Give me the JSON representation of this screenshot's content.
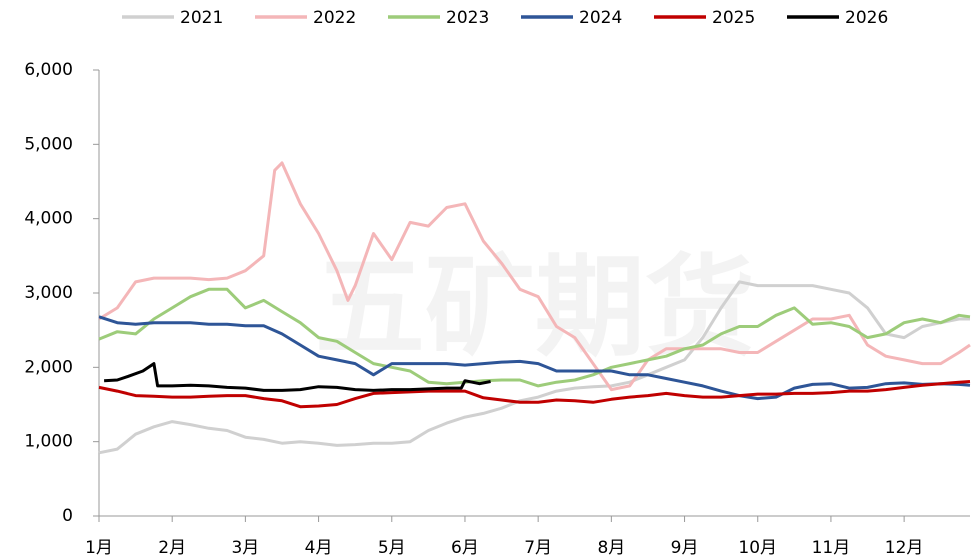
{
  "chart_data": {
    "type": "line",
    "watermark": "五矿期货",
    "xlim": [
      1,
      12.9
    ],
    "xticks": [
      {
        "value": 1,
        "label": "1月"
      },
      {
        "value": 2,
        "label": "2月"
      },
      {
        "value": 3,
        "label": "3月"
      },
      {
        "value": 4,
        "label": "4月"
      },
      {
        "value": 5,
        "label": "5月"
      },
      {
        "value": 6,
        "label": "6月"
      },
      {
        "value": 7,
        "label": "7月"
      },
      {
        "value": 8,
        "label": "8月"
      },
      {
        "value": 9,
        "label": "9月"
      },
      {
        "value": 10,
        "label": "10月"
      },
      {
        "value": 11,
        "label": "11月"
      },
      {
        "value": 12,
        "label": "12月"
      }
    ],
    "ylim": [
      0,
      6000
    ],
    "yticks": [
      0,
      {
        "value": 1000,
        "label": "1,000"
      },
      {
        "value": 2000,
        "label": "2,000"
      },
      {
        "value": 3000,
        "label": "3,000"
      },
      {
        "value": 4000,
        "label": "4,000"
      },
      {
        "value": 5000,
        "label": "5,000"
      },
      {
        "value": 6000,
        "label": "6,000"
      }
    ],
    "legend": "top",
    "series": [
      {
        "name": "2021",
        "color": "#d0d0d0",
        "x": [
          1,
          1.25,
          1.5,
          1.75,
          2,
          2.25,
          2.5,
          2.75,
          3,
          3.25,
          3.5,
          3.75,
          4,
          4.25,
          4.5,
          4.75,
          5,
          5.25,
          5.5,
          5.75,
          6,
          6.25,
          6.5,
          6.75,
          7,
          7.25,
          7.5,
          7.75,
          8,
          8.25,
          8.5,
          8.75,
          9,
          9.25,
          9.5,
          9.75,
          10,
          10.25,
          10.5,
          10.75,
          11,
          11.25,
          11.5,
          11.75,
          12,
          12.25,
          12.5,
          12.75,
          12.9
        ],
        "values": [
          850,
          900,
          1100,
          1200,
          1270,
          1230,
          1180,
          1150,
          1060,
          1030,
          980,
          1000,
          980,
          950,
          960,
          980,
          980,
          1000,
          1150,
          1250,
          1330,
          1380,
          1450,
          1550,
          1600,
          1680,
          1720,
          1740,
          1750,
          1800,
          1900,
          2000,
          2100,
          2400,
          2800,
          3150,
          3100,
          3100,
          3100,
          3100,
          3050,
          3000,
          2800,
          2450,
          2400,
          2550,
          2600,
          2650,
          2650
        ]
      },
      {
        "name": "2022",
        "color": "#f4b6b8",
        "x": [
          1,
          1.25,
          1.5,
          1.75,
          2,
          2.25,
          2.5,
          2.75,
          3,
          3.25,
          3.4,
          3.5,
          3.75,
          4,
          4.25,
          4.4,
          4.5,
          4.75,
          5,
          5.25,
          5.5,
          5.75,
          6,
          6.25,
          6.5,
          6.75,
          7,
          7.25,
          7.5,
          7.75,
          8,
          8.25,
          8.5,
          8.75,
          9,
          9.25,
          9.5,
          9.75,
          10,
          10.25,
          10.5,
          10.75,
          11,
          11.25,
          11.5,
          11.75,
          12,
          12.25,
          12.5,
          12.75,
          12.9
        ],
        "values": [
          2650,
          2800,
          3150,
          3200,
          3200,
          3200,
          3180,
          3200,
          3300,
          3500,
          4650,
          4750,
          4200,
          3800,
          3300,
          2900,
          3100,
          3800,
          3450,
          3950,
          3900,
          4150,
          4200,
          3700,
          3400,
          3050,
          2950,
          2550,
          2400,
          2050,
          1700,
          1750,
          2100,
          2250,
          2250,
          2250,
          2250,
          2200,
          2200,
          2350,
          2500,
          2650,
          2650,
          2700,
          2300,
          2150,
          2100,
          2050,
          2050,
          2200,
          2300
        ]
      },
      {
        "name": "2023",
        "color": "#9dcc7a",
        "x": [
          1,
          1.25,
          1.5,
          1.75,
          2,
          2.25,
          2.5,
          2.75,
          3,
          3.25,
          3.5,
          3.75,
          4,
          4.25,
          4.5,
          4.75,
          5,
          5.25,
          5.5,
          5.75,
          6,
          6.25,
          6.5,
          6.75,
          7,
          7.25,
          7.5,
          7.75,
          8,
          8.25,
          8.5,
          8.75,
          9,
          9.25,
          9.5,
          9.75,
          10,
          10.25,
          10.5,
          10.75,
          11,
          11.25,
          11.5,
          11.75,
          12,
          12.25,
          12.5,
          12.75,
          12.9
        ],
        "values": [
          2380,
          2480,
          2450,
          2650,
          2800,
          2950,
          3050,
          3050,
          2800,
          2900,
          2750,
          2600,
          2400,
          2350,
          2200,
          2050,
          2000,
          1950,
          1800,
          1780,
          1800,
          1820,
          1830,
          1830,
          1750,
          1800,
          1830,
          1900,
          2000,
          2050,
          2100,
          2150,
          2250,
          2300,
          2450,
          2550,
          2550,
          2700,
          2800,
          2580,
          2600,
          2550,
          2400,
          2450,
          2600,
          2650,
          2600,
          2700,
          2680
        ]
      },
      {
        "name": "2024",
        "color": "#2e5597",
        "x": [
          1,
          1.25,
          1.5,
          1.75,
          2,
          2.25,
          2.5,
          2.75,
          3,
          3.25,
          3.5,
          3.75,
          4,
          4.25,
          4.5,
          4.75,
          5,
          5.25,
          5.5,
          5.75,
          6,
          6.25,
          6.5,
          6.75,
          7,
          7.25,
          7.5,
          7.75,
          8,
          8.25,
          8.5,
          8.75,
          9,
          9.25,
          9.5,
          9.75,
          10,
          10.25,
          10.5,
          10.75,
          11,
          11.25,
          11.5,
          11.75,
          12,
          12.25,
          12.5,
          12.75,
          12.9
        ],
        "values": [
          2680,
          2600,
          2580,
          2600,
          2600,
          2600,
          2580,
          2580,
          2560,
          2560,
          2450,
          2300,
          2150,
          2100,
          2050,
          1900,
          2050,
          2050,
          2050,
          2050,
          2030,
          2050,
          2070,
          2080,
          2050,
          1950,
          1950,
          1950,
          1950,
          1900,
          1900,
          1850,
          1800,
          1750,
          1680,
          1620,
          1580,
          1600,
          1720,
          1770,
          1780,
          1720,
          1730,
          1780,
          1790,
          1770,
          1780,
          1770,
          1760
        ]
      },
      {
        "name": "2025",
        "color": "#c00000",
        "x": [
          1,
          1.25,
          1.5,
          1.75,
          2,
          2.25,
          2.5,
          2.75,
          3,
          3.25,
          3.5,
          3.75,
          4,
          4.25,
          4.5,
          4.75,
          5,
          5.25,
          5.5,
          5.75,
          6,
          6.25,
          6.5,
          6.75,
          7,
          7.25,
          7.5,
          7.75,
          8,
          8.25,
          8.5,
          8.75,
          9,
          9.25,
          9.5,
          9.75,
          10,
          10.25,
          10.5,
          10.75,
          11,
          11.25,
          11.5,
          11.75,
          12,
          12.25,
          12.5,
          12.75,
          12.9
        ],
        "values": [
          1730,
          1680,
          1620,
          1610,
          1600,
          1600,
          1610,
          1620,
          1620,
          1580,
          1550,
          1470,
          1480,
          1500,
          1580,
          1650,
          1660,
          1670,
          1680,
          1680,
          1680,
          1590,
          1560,
          1530,
          1530,
          1560,
          1550,
          1530,
          1570,
          1600,
          1620,
          1650,
          1620,
          1600,
          1600,
          1620,
          1640,
          1640,
          1650,
          1650,
          1660,
          1680,
          1680,
          1700,
          1730,
          1760,
          1780,
          1800,
          1810
        ]
      },
      {
        "name": "2026",
        "color": "#000000",
        "x": [
          1.07,
          1.25,
          1.4,
          1.6,
          1.75,
          1.8,
          2,
          2.25,
          2.5,
          2.75,
          3,
          3.25,
          3.5,
          3.75,
          4,
          4.25,
          4.5,
          4.75,
          5,
          5.25,
          5.5,
          5.75,
          5.95,
          6,
          6.2,
          6.35
        ],
        "values": [
          1820,
          1830,
          1880,
          1950,
          2050,
          1750,
          1750,
          1760,
          1750,
          1730,
          1720,
          1690,
          1690,
          1700,
          1740,
          1730,
          1700,
          1690,
          1700,
          1700,
          1710,
          1720,
          1720,
          1820,
          1780,
          1810
        ]
      }
    ]
  }
}
